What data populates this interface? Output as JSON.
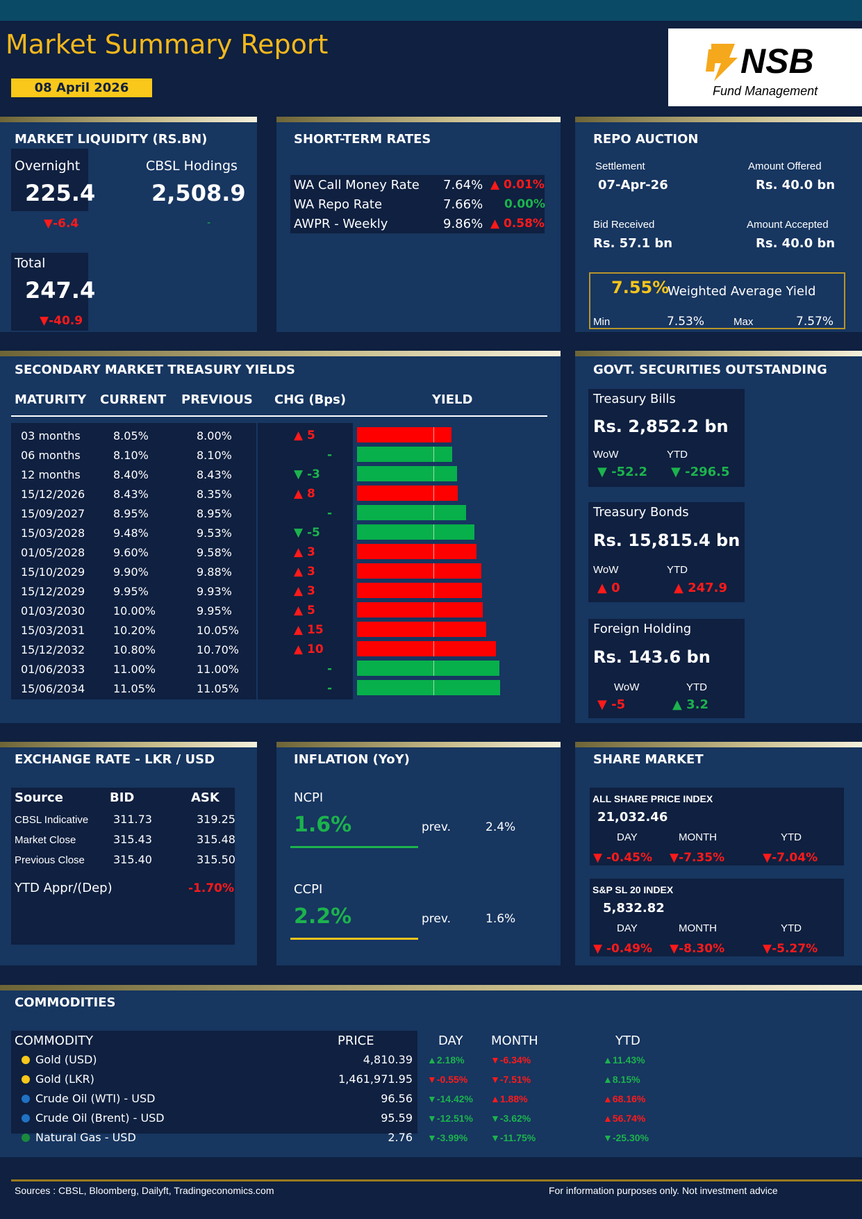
{
  "header": {
    "title": "Market Summary Report",
    "date": "08 April 2026",
    "logo_text": "NSB",
    "logo_sub": "Fund Management"
  },
  "liquidity": {
    "title": "MARKET LIQUIDITY (RS.BN)",
    "overnight_label": "Overnight",
    "overnight_value": "225.4",
    "overnight_change": "▼-6.4",
    "cbsl_label": "CBSL Hodings",
    "cbsl_value": "2,508.9",
    "cbsl_change": "-",
    "total_label": "Total",
    "total_value": "247.4",
    "total_change": "▼-40.9"
  },
  "short_rates": {
    "title": "SHORT-TERM RATES",
    "rows": [
      {
        "name": "WA Call Money Rate",
        "rate": "7.64%",
        "change": "▲ 0.01%",
        "dir": "up"
      },
      {
        "name": "WA Repo Rate",
        "rate": "7.66%",
        "change": "0.00%",
        "dir": "flat"
      },
      {
        "name": "AWPR - Weekly",
        "rate": "9.86%",
        "change": "▲ 0.58%",
        "dir": "up"
      }
    ]
  },
  "repo": {
    "title": "REPO AUCTION",
    "settlement_label": "Settlement",
    "settlement": "07-Apr-26",
    "offered_label": "Amount Offered",
    "offered": "Rs. 40.0 bn",
    "bid_label": "Bid Received",
    "bid": "Rs. 57.1 bn",
    "accepted_label": "Amount Accepted",
    "accepted": "Rs. 40.0 bn",
    "way": "7.55%",
    "way_label": "Weighted Average Yield",
    "min_label": "Min",
    "min": "7.53%",
    "max_label": "Max",
    "max": "7.57%"
  },
  "yields": {
    "title": "SECONDARY MARKET TREASURY YIELDS",
    "headers": [
      "MATURITY",
      "CURRENT",
      "PREVIOUS",
      "CHG (Bps)",
      "YIELD"
    ],
    "rows": [
      {
        "maturity": "03 months",
        "current": "8.05%",
        "previous": "8.00%",
        "chg": "▲ 5",
        "dir": "up",
        "y": 8.05
      },
      {
        "maturity": "06 months",
        "current": "8.10%",
        "previous": "8.10%",
        "chg": "-",
        "dir": "flat",
        "y": 8.1
      },
      {
        "maturity": "12 months",
        "current": "8.40%",
        "previous": "8.43%",
        "chg": "▼ -3",
        "dir": "down",
        "y": 8.4
      },
      {
        "maturity": "15/12/2026",
        "current": "8.43%",
        "previous": "8.35%",
        "chg": "▲ 8",
        "dir": "up",
        "y": 8.43
      },
      {
        "maturity": "15/09/2027",
        "current": "8.95%",
        "previous": "8.95%",
        "chg": "-",
        "dir": "flat",
        "y": 8.95
      },
      {
        "maturity": "15/03/2028",
        "current": "9.48%",
        "previous": "9.53%",
        "chg": "▼ -5",
        "dir": "down",
        "y": 9.48
      },
      {
        "maturity": "01/05/2028",
        "current": "9.60%",
        "previous": "9.58%",
        "chg": "▲ 3",
        "dir": "up",
        "y": 9.6
      },
      {
        "maturity": "15/10/2029",
        "current": "9.90%",
        "previous": "9.88%",
        "chg": "▲ 3",
        "dir": "up",
        "y": 9.9
      },
      {
        "maturity": "15/12/2029",
        "current": "9.95%",
        "previous": "9.93%",
        "chg": "▲ 3",
        "dir": "up",
        "y": 9.95
      },
      {
        "maturity": "01/03/2030",
        "current": "10.00%",
        "previous": "9.95%",
        "chg": "▲ 5",
        "dir": "up",
        "y": 10.0
      },
      {
        "maturity": "15/03/2031",
        "current": "10.20%",
        "previous": "10.05%",
        "chg": "▲ 15",
        "dir": "up",
        "y": 10.2
      },
      {
        "maturity": "15/12/2032",
        "current": "10.80%",
        "previous": "10.70%",
        "chg": "▲ 10",
        "dir": "up",
        "y": 10.8
      },
      {
        "maturity": "01/06/2033",
        "current": "11.00%",
        "previous": "11.00%",
        "chg": "-",
        "dir": "flat",
        "y": 11.0
      },
      {
        "maturity": "15/06/2034",
        "current": "11.05%",
        "previous": "11.05%",
        "chg": "-",
        "dir": "flat",
        "y": 11.05
      }
    ]
  },
  "govt": {
    "title": "GOVT. SECURITIES OUTSTANDING",
    "bills": {
      "label": "Treasury Bills",
      "value": "Rs. 2,852.2 bn",
      "wow_label": "WoW",
      "ytd_label": "YTD",
      "wow": "▼ -52.2",
      "ytd": "▼ -296.5"
    },
    "bonds": {
      "label": "Treasury Bonds",
      "value": "Rs. 15,815.4 bn",
      "wow_label": "WoW",
      "ytd_label": "YTD",
      "wow": "▲ 0",
      "ytd": "▲ 247.9"
    },
    "foreign": {
      "label": "Foreign Holding",
      "value": "Rs. 143.6 bn",
      "wow_label": "WoW",
      "ytd_label": "YTD",
      "wow": "▼ -5",
      "ytd": "▲ 3.2"
    }
  },
  "fx": {
    "title": "EXCHANGE RATE - LKR / USD",
    "headers": [
      "Source",
      "BID",
      "ASK"
    ],
    "rows": [
      {
        "source": "CBSL Indicative",
        "bid": "311.73",
        "ask": "319.25"
      },
      {
        "source": "Market Close",
        "bid": "315.43",
        "ask": "315.48"
      },
      {
        "source": "Previous Close",
        "bid": "315.40",
        "ask": "315.50"
      }
    ],
    "ytd_label": "YTD Appr/(Dep)",
    "ytd": "-1.70%"
  },
  "inflation": {
    "title": "INFLATION (YoY)",
    "ncpi_label": "NCPI",
    "ncpi": "1.6%",
    "ncpi_prev_label": "prev.",
    "ncpi_prev": "2.4%",
    "ccpi_label": "CCPI",
    "ccpi": "2.2%",
    "ccpi_prev_label": "prev.",
    "ccpi_prev": "1.6%"
  },
  "shares": {
    "title": "SHARE MARKET",
    "aspi": {
      "label": "ALL SHARE PRICE INDEX",
      "value": "21,032.46",
      "day_label": "DAY",
      "month_label": "MONTH",
      "ytd_label": "YTD",
      "day": "▼ -0.45%",
      "month": "▼-7.35%",
      "ytd": "▼-7.04%"
    },
    "sp": {
      "label": "S&P SL 20 INDEX",
      "value": "5,832.82",
      "day_label": "DAY",
      "month_label": "MONTH",
      "ytd_label": "YTD",
      "day": "▼ -0.49%",
      "month": "▼-8.30%",
      "ytd": "▼-5.27%"
    }
  },
  "commodities": {
    "title": "COMMODITIES",
    "headers": [
      "COMMODITY",
      "PRICE",
      "DAY",
      "MONTH",
      "YTD"
    ],
    "rows": [
      {
        "name": "Gold (USD)",
        "price": "4,810.39",
        "day": "▲2.18%",
        "month": "▼-6.34%",
        "ytd": "▲11.43%",
        "dot": "#f9c81a",
        "dayc": "green",
        "monthc": "red",
        "ytdc": "green"
      },
      {
        "name": "Gold (LKR)",
        "price": "1,461,971.95",
        "day": "▼-0.55%",
        "month": "▼-7.51%",
        "ytd": "▲8.15%",
        "dot": "#f9c81a",
        "dayc": "red",
        "monthc": "red",
        "ytdc": "green"
      },
      {
        "name": "Crude Oil (WTI) - USD",
        "price": "96.56",
        "day": "▼-14.42%",
        "month": "▲1.88%",
        "ytd": "▲68.16%",
        "dot": "#1f72c4",
        "dayc": "green",
        "monthc": "red",
        "ytdc": "red"
      },
      {
        "name": "Crude Oil (Brent) - USD",
        "price": "95.59",
        "day": "▼-12.51%",
        "month": "▼-3.62%",
        "ytd": "▲56.74%",
        "dot": "#1f72c4",
        "dayc": "green",
        "monthc": "green",
        "ytdc": "red"
      },
      {
        "name": "Natural Gas - USD",
        "price": "2.76",
        "day": "▼-3.99%",
        "month": "▼-11.75%",
        "ytd": "▼-25.30%",
        "dot": "#1a8a3c",
        "dayc": "green",
        "monthc": "green",
        "ytdc": "green"
      }
    ]
  },
  "footer": {
    "sources": "Sources : CBSL, Bloomberg, Dailyft, Tradingeconomics.com",
    "disclaimer": "For information purposes only. Not investment advice"
  },
  "colors": {
    "up": "#ff1a1a",
    "down": "#1cb34d",
    "accent": "#f5b81c"
  }
}
